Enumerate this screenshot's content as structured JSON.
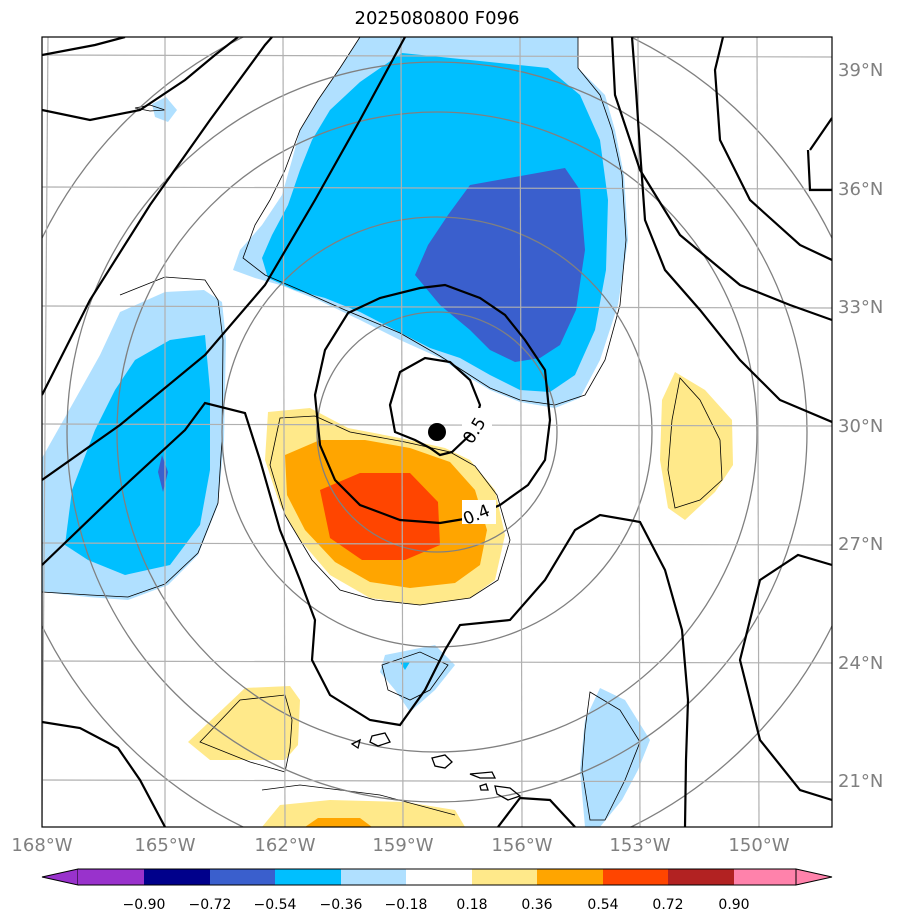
{
  "title": "2025080800 F096",
  "map": {
    "lon_labels": [
      "168°W",
      "165°W",
      "162°W",
      "159°W",
      "156°W",
      "153°W",
      "150°W"
    ],
    "lat_labels": [
      "39°N",
      "36°N",
      "33°N",
      "30°N",
      "27°N",
      "24°N",
      "21°N"
    ],
    "contour_labels": [
      "0.5",
      "0.4"
    ],
    "center_marker": "storm-center-dot"
  },
  "colorbar": {
    "ticks": [
      "−0.90",
      "−0.72",
      "−0.54",
      "−0.36",
      "−0.18",
      "0.18",
      "0.36",
      "0.54",
      "0.72",
      "0.90"
    ],
    "colors": [
      "#9932cc",
      "#00008b",
      "#3a5fcd",
      "#00bfff",
      "#b0e0ff",
      "#ffffff",
      "#ffe98a",
      "#ffa500",
      "#ff4500",
      "#b22222",
      "#ff82ab"
    ]
  },
  "fill_colors": {
    "light_blue": "#b0e0ff",
    "blue": "#00bfff",
    "dark_blue": "#3a5fcd",
    "yellow": "#ffe98a",
    "orange": "#ffa500",
    "red_orange": "#ff4500"
  }
}
